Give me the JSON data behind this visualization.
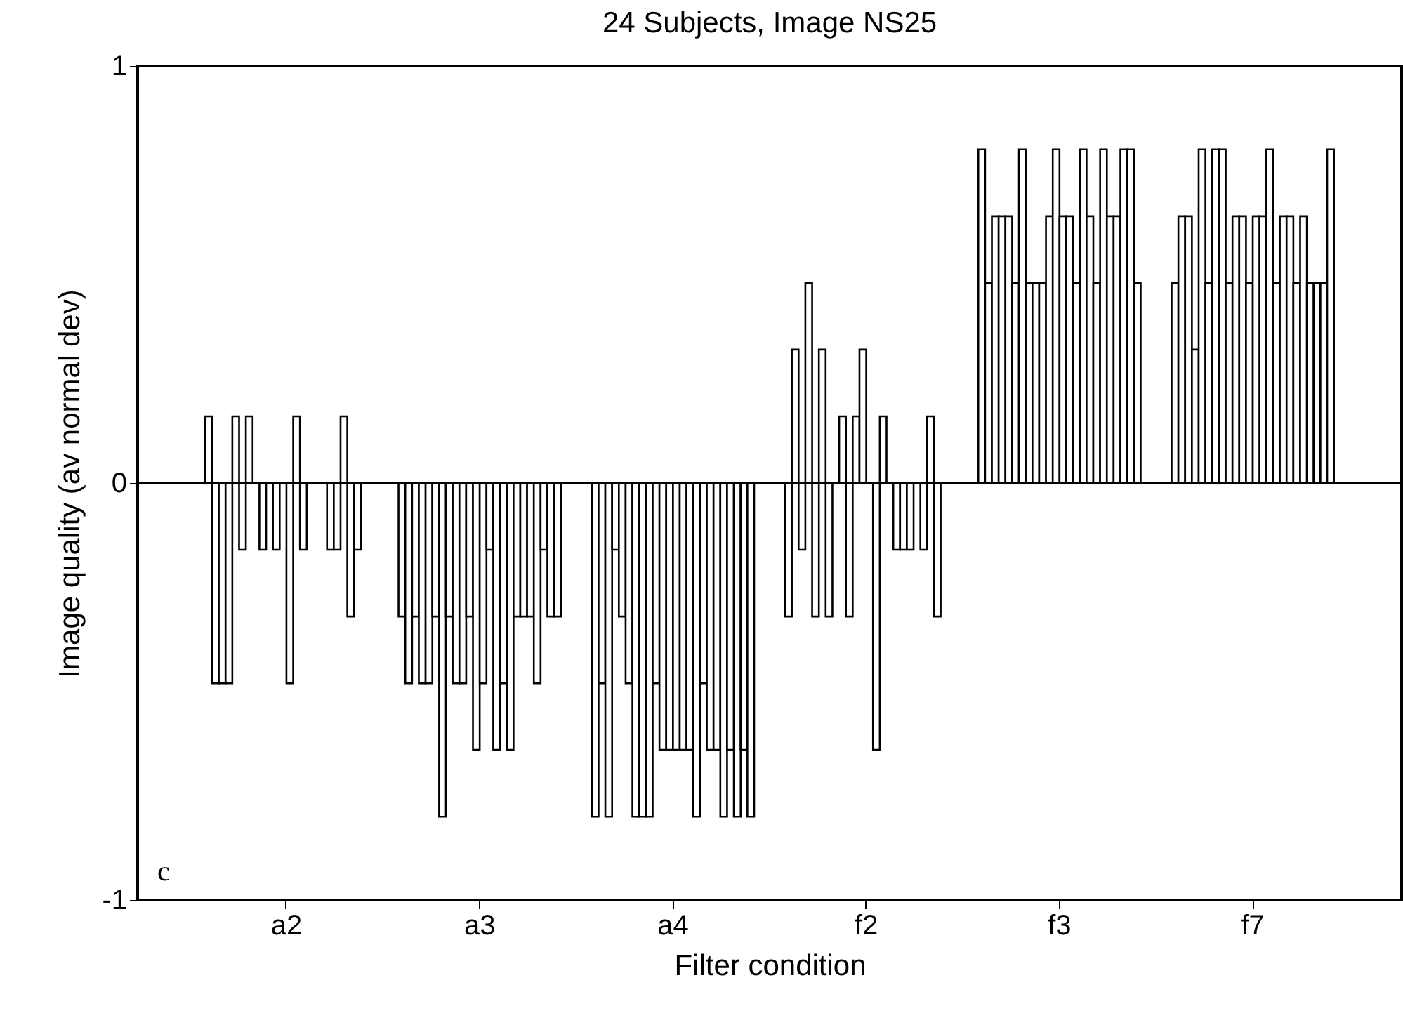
{
  "chart_data": {
    "type": "bar",
    "title": "24 Subjects, Image NS25",
    "xlabel": "Filter condition",
    "ylabel": "Image quality (av normal dev)",
    "categories": [
      "a2",
      "a3",
      "a4",
      "f2",
      "f3",
      "f7"
    ],
    "ylim": [
      -1,
      1
    ],
    "yticks": [
      -1,
      0,
      1
    ],
    "grid": false,
    "legend": false,
    "ref_lines": [
      {
        "axis": "y",
        "value": 0,
        "color": "#000000"
      }
    ],
    "annotations": [
      "c"
    ],
    "series": [
      {
        "color": "#ffffff",
        "values": [
          0.16,
          -0.32,
          -0.8,
          -0.32,
          0.8,
          0.48
        ]
      },
      {
        "color": "#ffffff",
        "values": [
          -0.48,
          -0.48,
          -0.48,
          0.32,
          0.48,
          0.64
        ]
      },
      {
        "color": "#ffffff",
        "values": [
          -0.48,
          -0.32,
          -0.8,
          -0.16,
          0.64,
          0.64
        ]
      },
      {
        "color": "#ffffff",
        "values": [
          -0.48,
          -0.48,
          -0.16,
          0.48,
          0.64,
          0.32
        ]
      },
      {
        "color": "#ffffff",
        "values": [
          0.16,
          -0.48,
          -0.32,
          -0.32,
          0.64,
          0.8
        ]
      },
      {
        "color": "#ffffff",
        "values": [
          -0.16,
          -0.32,
          -0.48,
          0.32,
          0.48,
          0.48
        ]
      },
      {
        "color": "#ffffff",
        "values": [
          0.16,
          -0.8,
          -0.8,
          -0.32,
          0.8,
          0.8
        ]
      },
      {
        "color": "#ffffff",
        "values": [
          null,
          -0.32,
          -0.8,
          null,
          0.48,
          0.8
        ]
      },
      {
        "color": "#ffffff",
        "values": [
          -0.16,
          -0.48,
          -0.8,
          0.16,
          0.48,
          0.48
        ]
      },
      {
        "color": "#ffffff",
        "values": [
          null,
          -0.48,
          -0.48,
          -0.32,
          0.48,
          0.64
        ]
      },
      {
        "color": "#ffffff",
        "values": [
          -0.16,
          -0.32,
          -0.64,
          0.16,
          0.64,
          0.64
        ]
      },
      {
        "color": "#ffffff",
        "values": [
          null,
          -0.64,
          -0.64,
          0.32,
          0.8,
          0.48
        ]
      },
      {
        "color": "#ffffff",
        "values": [
          -0.48,
          -0.48,
          -0.64,
          null,
          0.64,
          0.64
        ]
      },
      {
        "color": "#ffffff",
        "values": [
          0.16,
          -0.16,
          -0.64,
          -0.64,
          0.64,
          0.64
        ]
      },
      {
        "color": "#ffffff",
        "values": [
          -0.16,
          -0.64,
          -0.64,
          0.16,
          0.48,
          0.8
        ]
      },
      {
        "color": "#ffffff",
        "values": [
          null,
          -0.48,
          -0.8,
          null,
          0.8,
          0.48
        ]
      },
      {
        "color": "#ffffff",
        "values": [
          null,
          -0.64,
          -0.48,
          -0.16,
          0.64,
          0.64
        ]
      },
      {
        "color": "#ffffff",
        "values": [
          null,
          -0.32,
          -0.64,
          -0.16,
          0.48,
          0.64
        ]
      },
      {
        "color": "#ffffff",
        "values": [
          -0.16,
          -0.32,
          -0.64,
          -0.16,
          0.8,
          0.48
        ]
      },
      {
        "color": "#ffffff",
        "values": [
          -0.16,
          -0.32,
          -0.8,
          null,
          0.64,
          0.64
        ]
      },
      {
        "color": "#ffffff",
        "values": [
          0.16,
          -0.48,
          -0.64,
          -0.16,
          0.64,
          0.48
        ]
      },
      {
        "color": "#ffffff",
        "values": [
          -0.32,
          -0.16,
          -0.8,
          0.16,
          0.8,
          0.48
        ]
      },
      {
        "color": "#ffffff",
        "values": [
          -0.16,
          -0.32,
          -0.64,
          -0.32,
          0.8,
          0.48
        ]
      },
      {
        "color": "#ffffff",
        "values": [
          null,
          -0.32,
          -0.8,
          null,
          0.48,
          0.8
        ]
      }
    ]
  }
}
